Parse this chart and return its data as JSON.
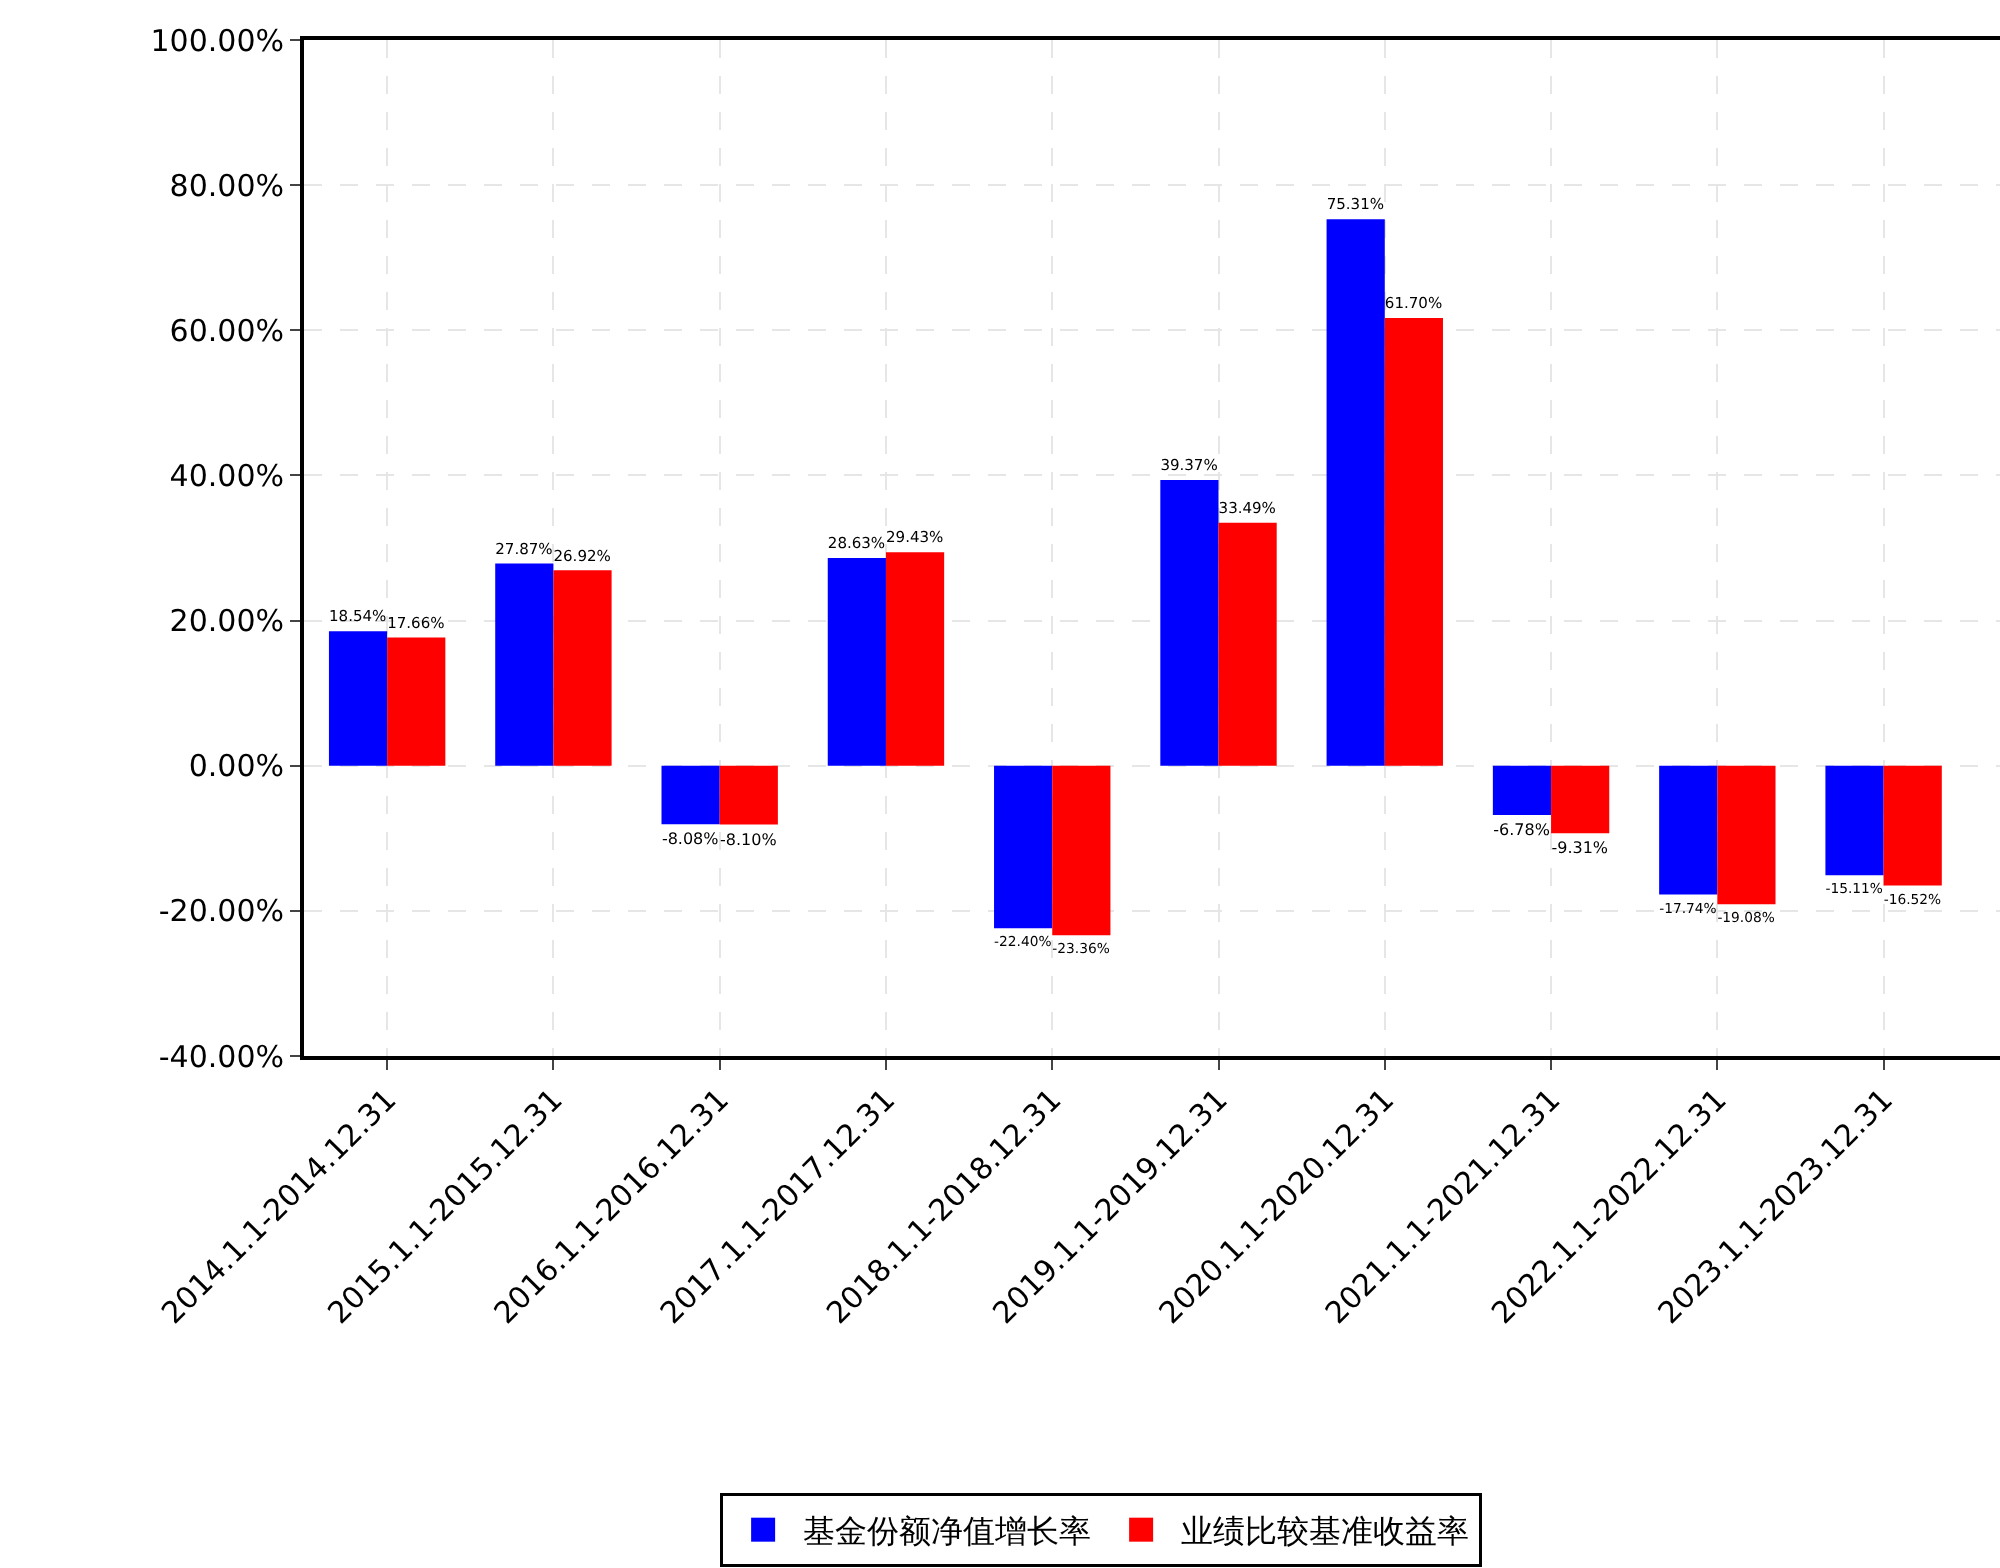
{
  "chart_data": {
    "type": "bar",
    "categories": [
      "2014.1.1-2014.12.31",
      "2015.1.1-2015.12.31",
      "2016.1.1-2016.12.31",
      "2017.1.1-2017.12.31",
      "2018.1.1-2018.12.31",
      "2019.1.1-2019.12.31",
      "2020.1.1-2020.12.31",
      "2021.1.1-2021.12.31",
      "2022.1.1-2022.12.31",
      "2023.1.1-2023.12.31"
    ],
    "series": [
      {
        "name": "基金份额净值增长率",
        "color": "#0000ff",
        "values": [
          18.54,
          27.87,
          -8.08,
          28.63,
          -22.4,
          39.37,
          75.31,
          -6.78,
          -17.74,
          -15.11
        ],
        "value_labels": [
          "18.54%",
          "27.87%",
          "-8.08%",
          "28.63%",
          "-22.40%",
          "39.37%",
          "75.31%",
          "-6.78%",
          "-17.74%",
          "-15.11%"
        ]
      },
      {
        "name": "业绩比较基准收益率",
        "color": "#ff0000",
        "values": [
          17.66,
          26.92,
          -8.1,
          29.43,
          -23.36,
          33.49,
          61.7,
          -9.31,
          -19.08,
          -16.52
        ],
        "value_labels": [
          "17.66%",
          "26.92%",
          "-8.10%",
          "29.43%",
          "-23.36%",
          "33.49%",
          "61.70%",
          "-9.31%",
          "-19.08%",
          "-16.52%"
        ]
      }
    ],
    "ylim": [
      -40,
      100
    ],
    "yticks": [
      {
        "value": -40,
        "label": "-40.00%"
      },
      {
        "value": -20,
        "label": "-20.00%"
      },
      {
        "value": 0,
        "label": "0.00%"
      },
      {
        "value": 20,
        "label": "20.00%"
      },
      {
        "value": 40,
        "label": "40.00%"
      },
      {
        "value": 60,
        "label": "60.00%"
      },
      {
        "value": 80,
        "label": "80.00%"
      },
      {
        "value": 100,
        "label": "100.00%"
      }
    ],
    "grid": true,
    "legend": "bottom"
  }
}
